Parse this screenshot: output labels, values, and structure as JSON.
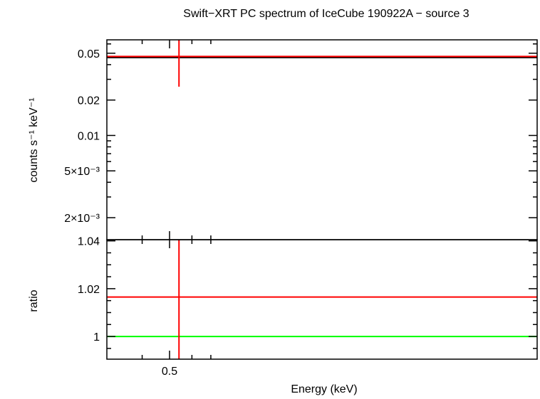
{
  "chart_data": [
    {
      "type": "scatter",
      "panel": "spectrum",
      "title": "Swift−XRT PC spectrum of IceCube 190922A − source 3",
      "ylabel": "counts s⁻¹ keV⁻¹",
      "yscale": "log",
      "ylim": [
        0.0013,
        0.065
      ],
      "xlim": [
        0.3,
        10
      ],
      "yticks": [
        {
          "value": 0.05,
          "label": "0.05"
        },
        {
          "value": 0.02,
          "label": "0.02"
        },
        {
          "value": 0.01,
          "label": "0.01"
        },
        {
          "value": 0.005,
          "label": "5×10⁻³"
        },
        {
          "value": 0.002,
          "label": "2×10⁻³"
        }
      ],
      "series": [
        {
          "color": "#ff0000",
          "points": [
            {
              "x": 0.54,
              "y": 0.046,
              "xerr": [
                0.3,
                10
              ],
              "yerr": [
                0.026,
                0.065
              ]
            }
          ]
        }
      ],
      "model": {
        "color": "#000000",
        "y": 0.046
      }
    },
    {
      "type": "scatter",
      "panel": "ratio",
      "xlabel": "Energy (keV)",
      "ylabel": "ratio",
      "ylim": [
        0.9905,
        1.0405
      ],
      "xlim": [
        0.3,
        10
      ],
      "yticks": [
        {
          "value": 1.04,
          "label": "1.04"
        },
        {
          "value": 1.02,
          "label": "1.02"
        },
        {
          "value": 1,
          "label": "1"
        }
      ],
      "xticks": [
        {
          "value": 0.5,
          "label": "0.5"
        }
      ],
      "series": [
        {
          "color": "#ff0000",
          "points": [
            {
              "x": 0.54,
              "y": 1.0165,
              "xerr": [
                0.3,
                10
              ],
              "yerr": [
                0.9905,
                1.0405
              ]
            }
          ]
        }
      ],
      "reference": {
        "color": "#00ff00",
        "y": 1
      }
    }
  ]
}
